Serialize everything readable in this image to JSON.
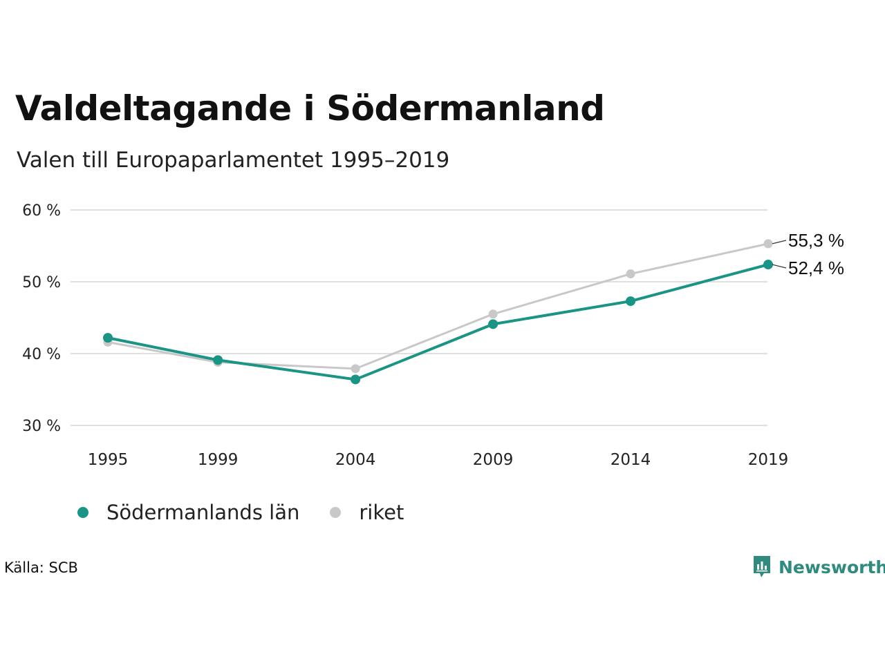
{
  "header": {
    "title": "Valdeltagande i Södermanland",
    "subtitle": "Valen till Europaparlamentet 1995–2019"
  },
  "chart_data": {
    "type": "line",
    "title": "Valdeltagande i Södermanland",
    "subtitle": "Valen till Europaparlamentet 1995–2019",
    "x": [
      1995,
      1999,
      2004,
      2009,
      2014,
      2019
    ],
    "x_tick_labels": [
      "1995",
      "1999",
      "2004",
      "2009",
      "2014",
      "2019"
    ],
    "ylim": [
      30,
      60
    ],
    "y_ticks": [
      30,
      40,
      50,
      60
    ],
    "y_tick_labels": [
      "30 %",
      "40 %",
      "50 %",
      "60 %"
    ],
    "grid": "horizontal",
    "legend_position": "bottom-left",
    "series": [
      {
        "name": "Södermanlands län",
        "values": [
          42.2,
          39.1,
          36.4,
          44.1,
          47.3,
          52.4
        ],
        "color": "#1a9485",
        "end_label": "52,4 %"
      },
      {
        "name": "riket",
        "values": [
          41.6,
          38.8,
          37.9,
          45.5,
          51.1,
          55.3
        ],
        "color": "#c8c8c8",
        "end_label": "55,3 %"
      }
    ]
  },
  "footer": {
    "source": "Källa: SCB",
    "brand": "Newsworthy",
    "brand_color": "#2e8b7e",
    "logo_icon": "bar-chart-badge-icon"
  }
}
